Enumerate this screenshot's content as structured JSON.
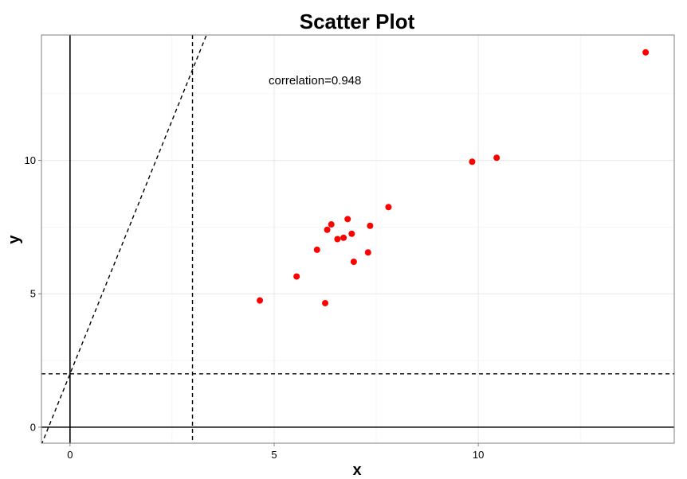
{
  "chart_data": {
    "type": "scatter",
    "title": "Scatter Plot",
    "xlabel": "x",
    "ylabel": "y",
    "xlim": [
      -0.7,
      14.8
    ],
    "ylim": [
      -0.6,
      14.7
    ],
    "x_ticks": [
      0,
      5,
      10
    ],
    "y_ticks": [
      0,
      5,
      10
    ],
    "grid": true,
    "point_color": "#ff0000",
    "points": [
      {
        "x": 4.65,
        "y": 4.75
      },
      {
        "x": 5.55,
        "y": 5.65
      },
      {
        "x": 6.05,
        "y": 6.65
      },
      {
        "x": 6.25,
        "y": 4.65
      },
      {
        "x": 6.3,
        "y": 7.4
      },
      {
        "x": 6.4,
        "y": 7.6
      },
      {
        "x": 6.55,
        "y": 7.05
      },
      {
        "x": 6.7,
        "y": 7.1
      },
      {
        "x": 6.8,
        "y": 7.8
      },
      {
        "x": 6.9,
        "y": 7.25
      },
      {
        "x": 6.95,
        "y": 6.2
      },
      {
        "x": 7.3,
        "y": 6.55
      },
      {
        "x": 7.35,
        "y": 7.55
      },
      {
        "x": 7.8,
        "y": 8.25
      },
      {
        "x": 9.85,
        "y": 9.95
      },
      {
        "x": 10.45,
        "y": 10.1
      },
      {
        "x": 14.1,
        "y": 14.05
      }
    ],
    "reference_lines": [
      {
        "kind": "vline",
        "x": 0,
        "style": "solid"
      },
      {
        "kind": "hline",
        "y": 0,
        "style": "solid"
      },
      {
        "kind": "vline",
        "x": 3,
        "style": "dashed"
      },
      {
        "kind": "hline",
        "y": 2,
        "style": "dashed"
      },
      {
        "kind": "abline",
        "intercept": 2,
        "slope": 3.8,
        "style": "dashed"
      }
    ],
    "annotation": {
      "text": "correlation=0.948",
      "x": 6,
      "y": 13
    }
  }
}
